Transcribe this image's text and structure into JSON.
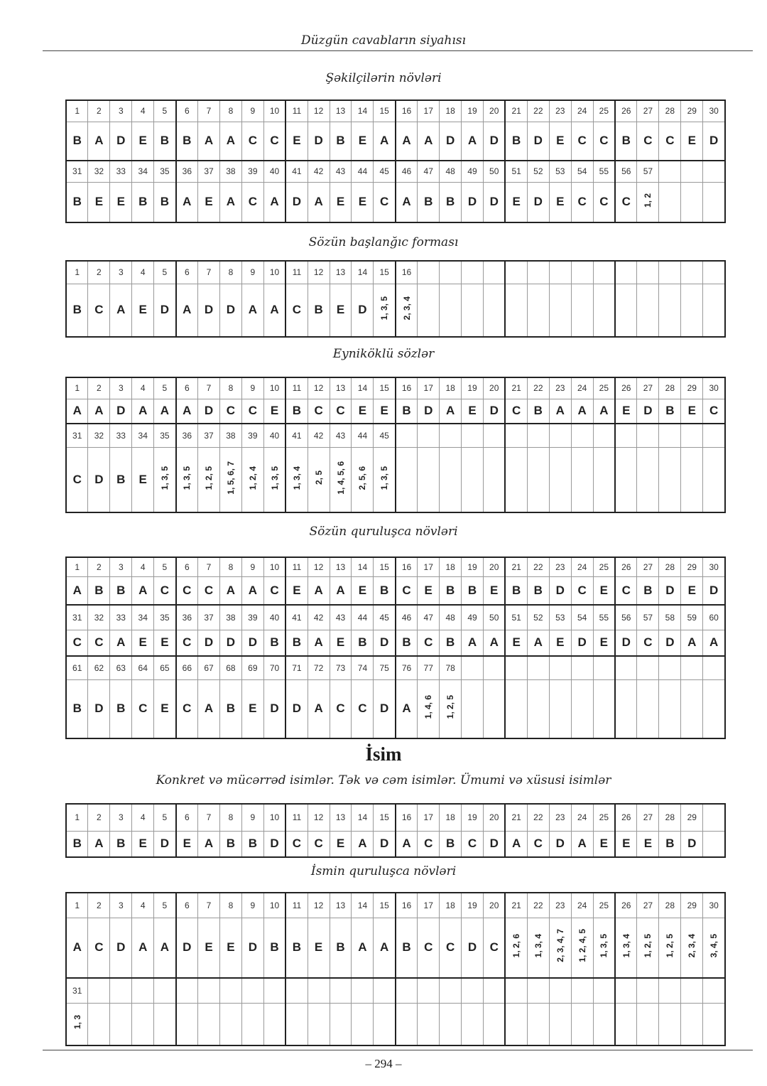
{
  "header": {
    "title": "Düzgün cavabların siyahısı"
  },
  "sections": [
    {
      "heading": "Şəkilçilərin növləri",
      "blocks": [
        {
          "numbers": [
            "1",
            "2",
            "3",
            "4",
            "5",
            "6",
            "7",
            "8",
            "9",
            "10",
            "11",
            "12",
            "13",
            "14",
            "15",
            "16",
            "17",
            "18",
            "19",
            "20",
            "21",
            "22",
            "23",
            "24",
            "25",
            "26",
            "27",
            "28",
            "29",
            "30"
          ],
          "answers": [
            "B",
            "A",
            "D",
            "E",
            "B",
            "B",
            "A",
            "A",
            "C",
            "C",
            "E",
            "D",
            "B",
            "E",
            "A",
            "A",
            "A",
            "D",
            "A",
            "D",
            "B",
            "D",
            "E",
            "C",
            "C",
            "B",
            "C",
            "C",
            "E",
            "D"
          ]
        },
        {
          "numbers": [
            "31",
            "32",
            "33",
            "34",
            "35",
            "36",
            "37",
            "38",
            "39",
            "40",
            "41",
            "42",
            "43",
            "44",
            "45",
            "46",
            "47",
            "48",
            "49",
            "50",
            "51",
            "52",
            "53",
            "54",
            "55",
            "56",
            "57",
            "",
            "",
            ""
          ],
          "answers": [
            "B",
            "E",
            "E",
            "B",
            "B",
            "A",
            "E",
            "A",
            "C",
            "A",
            "D",
            "A",
            "E",
            "E",
            "C",
            "A",
            "B",
            "B",
            "D",
            "D",
            "E",
            "D",
            "E",
            "C",
            "C",
            "C",
            "1, 2",
            "",
            "",
            ""
          ]
        }
      ]
    },
    {
      "heading": "Sözün başlanğıc forması",
      "blocks": [
        {
          "numbers": [
            "1",
            "2",
            "3",
            "4",
            "5",
            "6",
            "7",
            "8",
            "9",
            "10",
            "11",
            "12",
            "13",
            "14",
            "15",
            "16",
            "",
            "",
            "",
            "",
            "",
            "",
            "",
            "",
            "",
            "",
            "",
            "",
            "",
            ""
          ],
          "answers": [
            "B",
            "C",
            "A",
            "E",
            "D",
            "A",
            "D",
            "D",
            "A",
            "A",
            "C",
            "B",
            "E",
            "D",
            "1, 3, 5",
            "2, 3, 4",
            "",
            "",
            "",
            "",
            "",
            "",
            "",
            "",
            "",
            "",
            "",
            "",
            "",
            ""
          ]
        }
      ]
    },
    {
      "heading": "Eyniköklü sözlər",
      "blocks": [
        {
          "numbers": [
            "1",
            "2",
            "3",
            "4",
            "5",
            "6",
            "7",
            "8",
            "9",
            "10",
            "11",
            "12",
            "13",
            "14",
            "15",
            "16",
            "17",
            "18",
            "19",
            "20",
            "21",
            "22",
            "23",
            "24",
            "25",
            "26",
            "27",
            "28",
            "29",
            "30"
          ],
          "answers": [
            "A",
            "A",
            "D",
            "A",
            "A",
            "A",
            "D",
            "C",
            "C",
            "E",
            "B",
            "C",
            "C",
            "E",
            "E",
            "B",
            "D",
            "A",
            "E",
            "D",
            "C",
            "B",
            "A",
            "A",
            "A",
            "E",
            "D",
            "B",
            "E",
            "C"
          ]
        },
        {
          "numbers": [
            "31",
            "32",
            "33",
            "34",
            "35",
            "36",
            "37",
            "38",
            "39",
            "40",
            "41",
            "42",
            "43",
            "44",
            "45",
            "",
            "",
            "",
            "",
            "",
            "",
            "",
            "",
            "",
            "",
            "",
            "",
            "",
            "",
            ""
          ],
          "answers": [
            "C",
            "D",
            "B",
            "E",
            "1, 3, 5",
            "1, 3, 5",
            "1, 2, 5",
            "1, 5, 6, 7",
            "1, 2, 4",
            "1, 3, 5",
            "1, 3, 4",
            "2, 5",
            "1, 4, 5, 6",
            "2, 5, 6",
            "1, 3, 5",
            "",
            "",
            "",
            "",
            "",
            "",
            "",
            "",
            "",
            "",
            "",
            "",
            "",
            "",
            ""
          ]
        }
      ]
    },
    {
      "heading": "Sözün quruluşca növləri",
      "blocks": [
        {
          "numbers": [
            "1",
            "2",
            "3",
            "4",
            "5",
            "6",
            "7",
            "8",
            "9",
            "10",
            "11",
            "12",
            "13",
            "14",
            "15",
            "16",
            "17",
            "18",
            "19",
            "20",
            "21",
            "22",
            "23",
            "24",
            "25",
            "26",
            "27",
            "28",
            "29",
            "30"
          ],
          "answers": [
            "A",
            "B",
            "B",
            "A",
            "C",
            "C",
            "C",
            "A",
            "A",
            "C",
            "E",
            "A",
            "A",
            "E",
            "B",
            "C",
            "E",
            "B",
            "B",
            "E",
            "B",
            "B",
            "D",
            "C",
            "E",
            "C",
            "B",
            "D",
            "E",
            "D"
          ]
        },
        {
          "numbers": [
            "31",
            "32",
            "33",
            "34",
            "35",
            "36",
            "37",
            "38",
            "39",
            "40",
            "41",
            "42",
            "43",
            "44",
            "45",
            "46",
            "47",
            "48",
            "49",
            "50",
            "51",
            "52",
            "53",
            "54",
            "55",
            "56",
            "57",
            "58",
            "59",
            "60"
          ],
          "answers": [
            "C",
            "C",
            "A",
            "E",
            "E",
            "C",
            "D",
            "D",
            "D",
            "B",
            "B",
            "A",
            "E",
            "B",
            "D",
            "B",
            "C",
            "B",
            "A",
            "A",
            "E",
            "A",
            "E",
            "D",
            "E",
            "D",
            "C",
            "D",
            "A",
            "A"
          ]
        },
        {
          "numbers": [
            "61",
            "62",
            "63",
            "64",
            "65",
            "66",
            "67",
            "68",
            "69",
            "70",
            "71",
            "72",
            "73",
            "74",
            "75",
            "76",
            "77",
            "78",
            "",
            "",
            "",
            "",
            "",
            "",
            "",
            "",
            "",
            "",
            "",
            ""
          ],
          "answers": [
            "B",
            "D",
            "B",
            "C",
            "E",
            "C",
            "A",
            "B",
            "E",
            "D",
            "D",
            "A",
            "C",
            "C",
            "D",
            "A",
            "1, 4, 6",
            "1, 2, 5",
            "",
            "",
            "",
            "",
            "",
            "",
            "",
            "",
            "",
            "",
            "",
            ""
          ]
        }
      ]
    },
    {
      "heading": "Konkret və mücərrəd isimlər. Tək və cəm isimlər. Ümumi və xüsusi isimlər",
      "blocks": [
        {
          "numbers": [
            "1",
            "2",
            "3",
            "4",
            "5",
            "6",
            "7",
            "8",
            "9",
            "10",
            "11",
            "12",
            "13",
            "14",
            "15",
            "16",
            "17",
            "18",
            "19",
            "20",
            "21",
            "22",
            "23",
            "24",
            "25",
            "26",
            "27",
            "28",
            "29",
            ""
          ],
          "answers": [
            "B",
            "A",
            "B",
            "E",
            "D",
            "E",
            "A",
            "B",
            "B",
            "D",
            "C",
            "C",
            "E",
            "A",
            "D",
            "A",
            "C",
            "B",
            "C",
            "D",
            "A",
            "C",
            "D",
            "A",
            "E",
            "E",
            "E",
            "B",
            "D",
            ""
          ]
        }
      ]
    },
    {
      "heading": "İsmin quruluşca növləri",
      "blocks": [
        {
          "numbers": [
            "1",
            "2",
            "3",
            "4",
            "5",
            "6",
            "7",
            "8",
            "9",
            "10",
            "11",
            "12",
            "13",
            "14",
            "15",
            "16",
            "17",
            "18",
            "19",
            "20",
            "21",
            "22",
            "23",
            "24",
            "25",
            "26",
            "27",
            "28",
            "29",
            "30"
          ],
          "answers": [
            "A",
            "C",
            "D",
            "A",
            "A",
            "D",
            "E",
            "E",
            "D",
            "B",
            "B",
            "E",
            "B",
            "A",
            "A",
            "B",
            "C",
            "C",
            "D",
            "C",
            "1, 2, 6",
            "1, 3, 4",
            "2, 3, 4, 7",
            "1, 2, 4, 5",
            "1, 3, 5",
            "1, 3, 4",
            "1, 2, 5",
            "1, 2, 5",
            "2, 3, 4",
            "3, 4, 5"
          ]
        },
        {
          "numbers": [
            "31",
            "",
            "",
            "",
            "",
            "",
            "",
            "",
            "",
            "",
            "",
            "",
            "",
            "",
            "",
            "",
            "",
            "",
            "",
            "",
            "",
            "",
            "",
            "",
            "",
            "",
            "",
            "",
            "",
            ""
          ],
          "answers": [
            "1, 3",
            "",
            "",
            "",
            "",
            "",
            "",
            "",
            "",
            "",
            "",
            "",
            "",
            "",
            "",
            "",
            "",
            "",
            "",
            "",
            "",
            "",
            "",
            "",
            "",
            "",
            "",
            "",
            "",
            ""
          ]
        }
      ]
    }
  ],
  "chapter_title": "İsim",
  "footer": {
    "page_number": "– 294 –"
  }
}
